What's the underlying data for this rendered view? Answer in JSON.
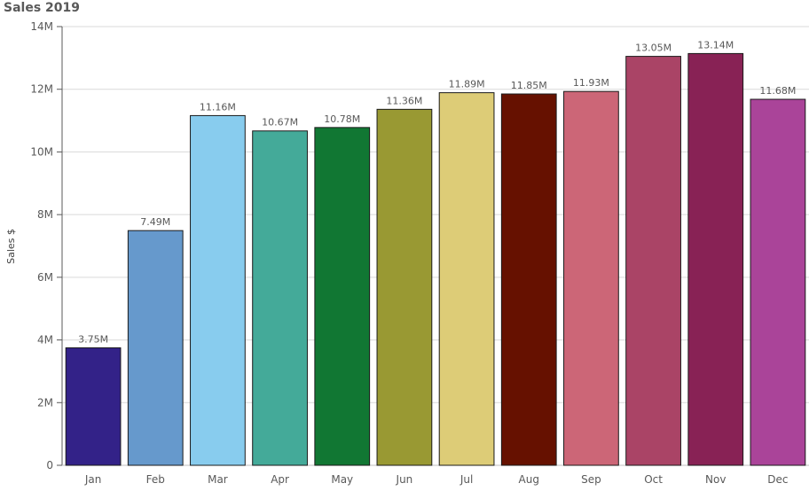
{
  "chart_data": {
    "type": "bar",
    "title": "Sales 2019",
    "xlabel": "",
    "ylabel": "Sales $",
    "categories": [
      "Jan",
      "Feb",
      "Mar",
      "Apr",
      "May",
      "Jun",
      "Jul",
      "Aug",
      "Sep",
      "Oct",
      "Nov",
      "Dec"
    ],
    "values": [
      3.75,
      7.49,
      11.16,
      10.67,
      10.78,
      11.36,
      11.89,
      11.85,
      11.93,
      13.05,
      13.14,
      11.68
    ],
    "value_unit": "M",
    "data_labels": [
      "3.75M",
      "7.49M",
      "11.16M",
      "10.67M",
      "10.78M",
      "11.36M",
      "11.89M",
      "11.85M",
      "11.93M",
      "13.05M",
      "13.14M",
      "11.68M"
    ],
    "colors": [
      "#332288",
      "#6699cc",
      "#88ccee",
      "#44aa99",
      "#117733",
      "#999933",
      "#ddcc77",
      "#661100",
      "#cc6677",
      "#aa4466",
      "#882255",
      "#aa4499"
    ],
    "ylim": [
      0,
      14
    ],
    "yticks": [
      0,
      2,
      4,
      6,
      8,
      10,
      12,
      14
    ],
    "ytick_labels": [
      "0",
      "2M",
      "4M",
      "6M",
      "8M",
      "10M",
      "12M",
      "14M"
    ],
    "grid": true,
    "legend": "none"
  }
}
